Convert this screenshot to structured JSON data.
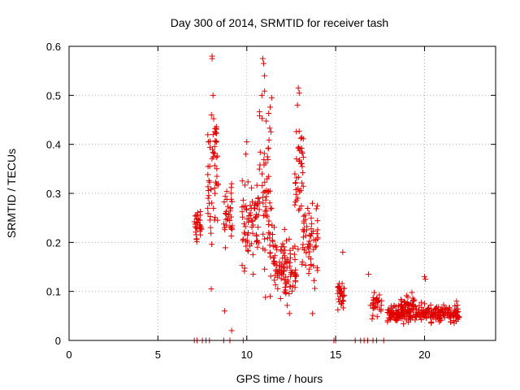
{
  "chart_data": {
    "type": "scatter",
    "title": "Day 300 of 2014, SRMTID for receiver tash",
    "xlabel": "GPS time / hours",
    "ylabel": "SRMTID / TECUs",
    "xlim": [
      0,
      24
    ],
    "ylim": [
      0,
      0.6
    ],
    "xticks": [
      0,
      5,
      10,
      15,
      20
    ],
    "yticks": [
      0,
      0.1,
      0.2,
      0.3,
      0.4,
      0.5,
      0.6
    ],
    "grid": true,
    "marker": "+",
    "color": "#e00000",
    "clusters": [
      {
        "x_range": [
          7.05,
          7.45
        ],
        "y_center": 0.235,
        "y_spread": 0.045,
        "count": 30
      },
      {
        "x_range": [
          7.8,
          8.4
        ],
        "y_center": 0.3,
        "y_spread": 0.2,
        "count": 45
      },
      {
        "x_range": [
          8.1,
          8.3
        ],
        "y_center": 0.42,
        "y_spread": 0.07,
        "count": 15
      },
      {
        "x_range": [
          8.7,
          9.2
        ],
        "y_center": 0.26,
        "y_spread": 0.09,
        "count": 35
      },
      {
        "x_range": [
          9.7,
          10.7
        ],
        "y_center": 0.24,
        "y_spread": 0.12,
        "count": 70
      },
      {
        "x_range": [
          10.7,
          11.4
        ],
        "y_center": 0.3,
        "y_spread": 0.24,
        "count": 60
      },
      {
        "x_range": [
          11.2,
          12.2
        ],
        "y_center": 0.16,
        "y_spread": 0.1,
        "count": 60
      },
      {
        "x_range": [
          12.0,
          12.8
        ],
        "y_center": 0.14,
        "y_spread": 0.09,
        "count": 50
      },
      {
        "x_range": [
          12.7,
          13.2
        ],
        "y_center": 0.33,
        "y_spread": 0.18,
        "count": 40
      },
      {
        "x_range": [
          13.1,
          14.0
        ],
        "y_center": 0.2,
        "y_spread": 0.1,
        "count": 60
      },
      {
        "x_range": [
          15.1,
          15.5
        ],
        "y_center": 0.1,
        "y_spread": 0.05,
        "count": 30
      },
      {
        "x_range": [
          16.9,
          17.6
        ],
        "y_center": 0.075,
        "y_spread": 0.035,
        "count": 30
      },
      {
        "x_range": [
          17.9,
          22.0
        ],
        "y_center": 0.055,
        "y_spread": 0.025,
        "count": 260
      },
      {
        "x_range": [
          18.6,
          19.5
        ],
        "y_center": 0.075,
        "y_spread": 0.03,
        "count": 40
      }
    ],
    "points": [
      [
        8.05,
        0.58
      ],
      [
        8.05,
        0.575
      ],
      [
        10.9,
        0.575
      ],
      [
        10.95,
        0.565
      ],
      [
        12.9,
        0.515
      ],
      [
        12.95,
        0.505
      ],
      [
        11.0,
        0.54
      ],
      [
        8.1,
        0.5
      ],
      [
        11.4,
        0.495
      ],
      [
        10.85,
        0.5
      ],
      [
        12.85,
        0.48
      ],
      [
        8.0,
        0.105
      ],
      [
        8.75,
        0.06
      ],
      [
        9.15,
        0.02
      ],
      [
        10.0,
        0.405
      ],
      [
        9.95,
        0.38
      ],
      [
        15.4,
        0.18
      ],
      [
        13.7,
        0.055
      ],
      [
        12.4,
        0.055
      ],
      [
        17.3,
        0.085
      ],
      [
        20.0,
        0.13
      ],
      [
        20.05,
        0.125
      ],
      [
        16.85,
        0.135
      ],
      [
        21.8,
        0.08
      ],
      [
        7.05,
        0.0
      ],
      [
        7.2,
        0.0
      ],
      [
        7.5,
        0.0
      ],
      [
        7.7,
        0.0
      ],
      [
        7.9,
        0.0
      ],
      [
        8.7,
        0.0
      ],
      [
        9.05,
        0.0
      ],
      [
        9.8,
        0.0
      ],
      [
        14.9,
        0.0
      ],
      [
        15.0,
        0.0
      ],
      [
        16.1,
        0.0
      ],
      [
        16.4,
        0.0
      ],
      [
        16.6,
        0.0
      ],
      [
        16.8,
        0.0
      ],
      [
        17.1,
        0.0
      ],
      [
        17.3,
        0.0
      ],
      [
        17.7,
        0.0
      ]
    ]
  }
}
